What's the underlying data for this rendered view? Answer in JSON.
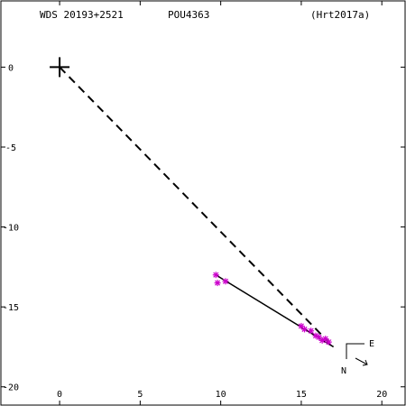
{
  "header": {
    "wds_id": "WDS 20193+2521",
    "discoverer": "POU4363",
    "orbit_ref": "(Hrt2017a)"
  },
  "chart_data": {
    "type": "scatter",
    "title": "",
    "xlabel": "",
    "ylabel": "",
    "xlim": [
      -3.7,
      21.5
    ],
    "ylim": [
      -21.2,
      4.2
    ],
    "x_ticks": [
      0,
      5,
      10,
      15,
      20
    ],
    "y_ticks": [
      0,
      -5,
      -10,
      -15,
      -20
    ],
    "x_tick_labels": [
      "0",
      "5",
      "10",
      "15",
      "20"
    ],
    "y_tick_labels": [
      "0",
      "-5",
      "-10",
      "-15",
      "-20"
    ],
    "primary": {
      "x": 0,
      "y": 0,
      "marker": "plus"
    },
    "dashed_line": {
      "from": [
        0,
        0
      ],
      "to": [
        16.7,
        -17.2
      ]
    },
    "orbit_track": {
      "from": [
        9.7,
        -13.0
      ],
      "to": [
        17.0,
        -17.5
      ]
    },
    "observations": {
      "marker": "asterisk",
      "color": "#cc00cc",
      "points": [
        {
          "x": 9.7,
          "y": -13.0
        },
        {
          "x": 9.8,
          "y": -13.5
        },
        {
          "x": 10.3,
          "y": -13.4
        },
        {
          "x": 15.0,
          "y": -16.2
        },
        {
          "x": 15.2,
          "y": -16.4
        },
        {
          "x": 15.6,
          "y": -16.5
        },
        {
          "x": 15.9,
          "y": -16.8
        },
        {
          "x": 16.1,
          "y": -16.9
        },
        {
          "x": 16.3,
          "y": -17.1
        },
        {
          "x": 16.5,
          "y": -17.0
        },
        {
          "x": 16.7,
          "y": -17.2
        }
      ]
    },
    "orientation": {
      "east_label": "E",
      "north_label": "N"
    }
  }
}
